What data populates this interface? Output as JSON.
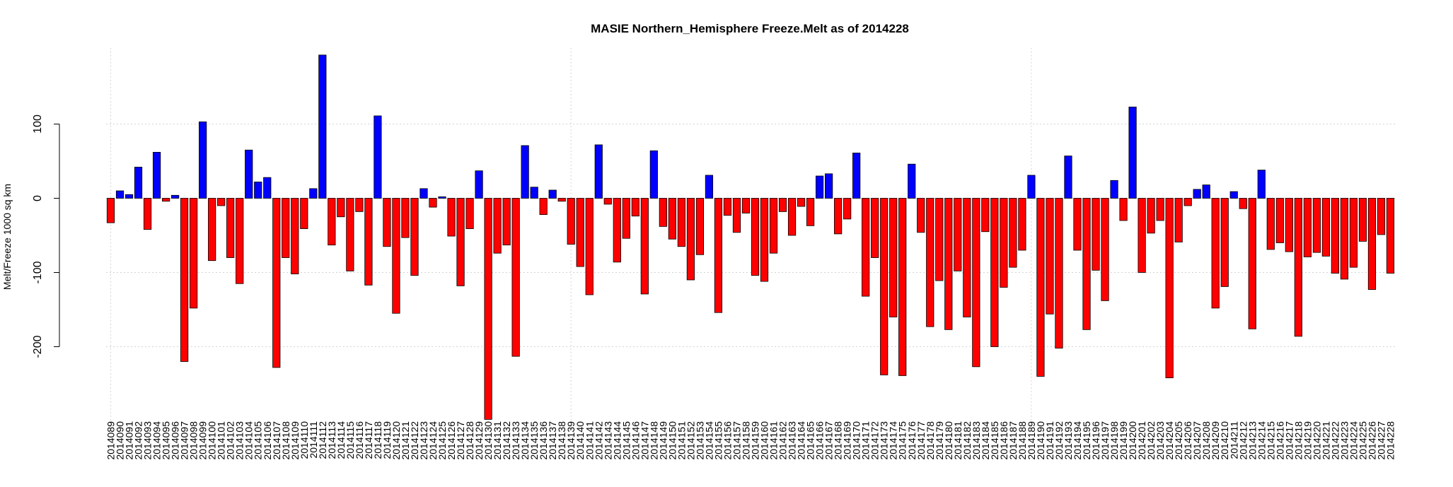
{
  "chart_data": {
    "type": "bar",
    "title": "MASIE Northern_Hemisphere Freeze.Melt as of 2014228",
    "xlabel": "",
    "ylabel": "Melt/Freeze 1000 sq km",
    "ylim": [
      -300,
      195
    ],
    "y_ticks": [
      100,
      0,
      -100,
      -200
    ],
    "grid": true,
    "colors": {
      "positive": "#0000FF",
      "negative": "#FF0000",
      "grid": "#D3D3D3",
      "border": "#000000"
    },
    "categories": [
      "2014089",
      "2014090",
      "2014091",
      "2014092",
      "2014093",
      "2014094",
      "2014095",
      "2014096",
      "2014097",
      "2014098",
      "2014099",
      "2014100",
      "2014101",
      "2014102",
      "2014103",
      "2014104",
      "2014105",
      "2014106",
      "2014107",
      "2014108",
      "2014109",
      "2014110",
      "2014111",
      "2014112",
      "2014113",
      "2014114",
      "2014115",
      "2014116",
      "2014117",
      "2014118",
      "2014119",
      "2014120",
      "2014121",
      "2014122",
      "2014123",
      "2014124",
      "2014125",
      "2014126",
      "2014127",
      "2014128",
      "2014129",
      "2014130",
      "2014131",
      "2014132",
      "2014133",
      "2014134",
      "2014135",
      "2014136",
      "2014137",
      "2014138",
      "2014139",
      "2014140",
      "2014141",
      "2014142",
      "2014143",
      "2014144",
      "2014145",
      "2014146",
      "2014147",
      "2014148",
      "2014149",
      "2014150",
      "2014151",
      "2014152",
      "2014153",
      "2014154",
      "2014155",
      "2014156",
      "2014157",
      "2014158",
      "2014159",
      "2014160",
      "2014161",
      "2014162",
      "2014163",
      "2014164",
      "2014165",
      "2014166",
      "2014167",
      "2014168",
      "2014169",
      "2014170",
      "2014171",
      "2014172",
      "2014173",
      "2014174",
      "2014175",
      "2014176",
      "2014177",
      "2014178",
      "2014179",
      "2014180",
      "2014181",
      "2014182",
      "2014183",
      "2014184",
      "2014185",
      "2014186",
      "2014187",
      "2014188",
      "2014189",
      "2014190",
      "2014191",
      "2014192",
      "2014193",
      "2014194",
      "2014195",
      "2014196",
      "2014197",
      "2014198",
      "2014199",
      "2014200",
      "2014201",
      "2014202",
      "2014203",
      "2014204",
      "2014205",
      "2014206",
      "2014207",
      "2014208",
      "2014209",
      "2014210",
      "2014211",
      "2014212",
      "2014213",
      "2014214",
      "2014215",
      "2014216",
      "2014217",
      "2014218",
      "2014219",
      "2014220",
      "2014221",
      "2014222",
      "2014223",
      "2014224",
      "2014225",
      "2014226",
      "2014227",
      "2014228"
    ],
    "values": [
      -33,
      10,
      5,
      42,
      -42,
      62,
      -4,
      4,
      -220,
      -148,
      103,
      -84,
      -10,
      -80,
      -115,
      65,
      22,
      28,
      -228,
      -80,
      -102,
      -41,
      13,
      193,
      -63,
      -25,
      -98,
      -18,
      -117,
      111,
      -65,
      -155,
      -53,
      -104,
      13,
      -12,
      2,
      -51,
      -118,
      -41,
      37,
      -298,
      -74,
      -63,
      -213,
      71,
      15,
      -22,
      11,
      -4,
      -62,
      -92,
      -130,
      72,
      -8,
      -86,
      -54,
      -24,
      -129,
      64,
      -38,
      -55,
      -65,
      -110,
      -76,
      31,
      -154,
      -23,
      -46,
      -20,
      -104,
      -112,
      -74,
      -18,
      -50,
      -11,
      -37,
      30,
      33,
      -48,
      -28,
      61,
      -132,
      -80,
      -238,
      -160,
      -239,
      46,
      -46,
      -173,
      -111,
      -177,
      -98,
      -160,
      -227,
      -45,
      -200,
      -120,
      -93,
      -70,
      31,
      -240,
      -156,
      -202,
      57,
      -70,
      -177,
      -97,
      -138,
      24,
      -30,
      123,
      -100,
      -47,
      -30,
      -242,
      -59,
      -10,
      12,
      18,
      -148,
      -119,
      9,
      -14,
      -176,
      38,
      -69,
      -60,
      -72,
      -186,
      -79,
      -73,
      -78,
      -101,
      -109,
      -93,
      -58,
      -123,
      -49,
      -101
    ]
  }
}
